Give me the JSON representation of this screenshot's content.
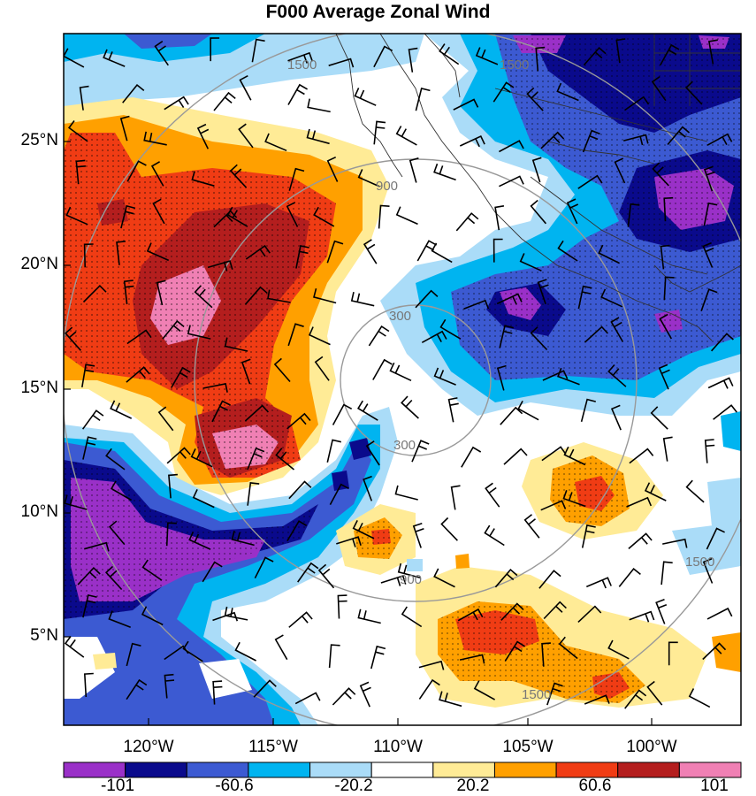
{
  "title": "F000 Average Zonal Wind",
  "latitude_labels": [
    "25°N",
    "20°N",
    "15°N",
    "10°N",
    "5°N"
  ],
  "longitude_labels": [
    "120°W",
    "115°W",
    "110°W",
    "105°W",
    "100°W"
  ],
  "range_ring_labels": [
    "300",
    "900",
    "1500"
  ],
  "colorbar": {
    "labels": [
      "-101",
      "-60.6",
      "-20.2",
      "20.2",
      "60.6",
      "101"
    ],
    "colors": [
      "#9a30c8",
      "#0a0a8c",
      "#3c5ad2",
      "#00b4f0",
      "#aadcf8",
      "#ffffff",
      "#ffeb96",
      "#ffa000",
      "#f03c14",
      "#b41e1e",
      "#f080b4"
    ]
  },
  "chart_data": {
    "type": "heatmap",
    "title": "F000 Average Zonal Wind",
    "x_axis_ticks": [
      "120°W",
      "115°W",
      "110°W",
      "105°W",
      "100°W"
    ],
    "y_axis_ticks": [
      "25°N",
      "20°N",
      "15°N",
      "10°N",
      "5°N"
    ],
    "colorbar_ticks": [
      -101,
      -60.6,
      -20.2,
      20.2,
      60.6,
      101
    ],
    "range_rings": [
      300,
      900,
      1500
    ],
    "features": [
      "shaded zonal wind contours",
      "wind barbs",
      "stippled significance",
      "coastlines and borders",
      "range rings"
    ]
  }
}
